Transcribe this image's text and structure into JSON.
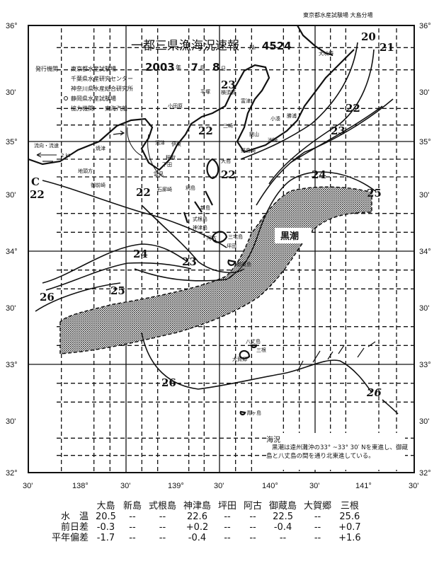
{
  "header": {
    "source": "東京都水産試験場 大島分場",
    "title": "一都三県漁海況速報",
    "number_prefix": "№",
    "number": "4524",
    "date_year": "2003",
    "year_unit": "年",
    "date_month": "7",
    "month_unit": "月",
    "date_day": "8",
    "day_unit": "日"
  },
  "issuers": {
    "issuer_label": "発行機関",
    "issuers": [
      "東京都水産試験場",
      "千葉県水産研究センター",
      "神奈川県水産総合研究所",
      "静岡県水産試験場"
    ],
    "coop_label": "協力機関",
    "coop": "東海汽船"
  },
  "legend": {
    "label": "流向・流速",
    "scale": "2 kt"
  },
  "axes": {
    "lat_labels": [
      "36°",
      "30'",
      "35°",
      "30'",
      "34°",
      "30'",
      "33°",
      "30'",
      "32°"
    ],
    "lon_labels": [
      "30'",
      "138°",
      "30'",
      "139°",
      "30'",
      "140°",
      "30'",
      "141°",
      "30'"
    ]
  },
  "places": [
    "犬吠埼",
    "平塚",
    "横須賀",
    "富津",
    "三崎",
    "館山",
    "洲崎",
    "野島崎",
    "勝浦",
    "小湊",
    "小田原",
    "伊東",
    "稲取",
    "下田",
    "石廊崎",
    "沼津",
    "焼津",
    "御前崎",
    "地頭方",
    "雲見",
    "大島",
    "利島",
    "新島",
    "式根島",
    "神津島",
    "三宅島",
    "阿古",
    "坪田",
    "御蔵島",
    "八丈島",
    "三根",
    "大賀郷",
    "青ヶ島"
  ],
  "kuroshio_label": "黒潮",
  "isotherms": [
    "20",
    "21",
    "22",
    "22",
    "22",
    "22",
    "22",
    "23",
    "23",
    "23",
    "24",
    "24",
    "25",
    "25",
    "26",
    "26",
    "26",
    "C"
  ],
  "colors": {
    "ink": "#111111",
    "kuroshio_fill": "#9a9a9a"
  },
  "remarks": {
    "title": "海況",
    "text": "黒潮は遠州灘沖の33° ~33° 30′ Nを東進し、御蔵島と八丈島の間を通り北東進している。"
  },
  "observations": {
    "stations": [
      "大島",
      "新島",
      "式根島",
      "神津島",
      "坪田",
      "阿古",
      "御蔵島",
      "大賀郷",
      "三根"
    ],
    "rows": [
      {
        "label": "水　温",
        "values": [
          "20.5",
          "--",
          "--",
          "22.6",
          "--",
          "--",
          "22.5",
          "--",
          "25.6"
        ]
      },
      {
        "label": "前日差",
        "values": [
          "-0.3",
          "--",
          "--",
          "+0.2",
          "--",
          "--",
          "-0.4",
          "--",
          "+0.7"
        ]
      },
      {
        "label": "平年偏差",
        "values": [
          "-1.7",
          "--",
          "--",
          "-0.4",
          "--",
          "--",
          "--",
          "--",
          "+1.6"
        ]
      }
    ]
  }
}
